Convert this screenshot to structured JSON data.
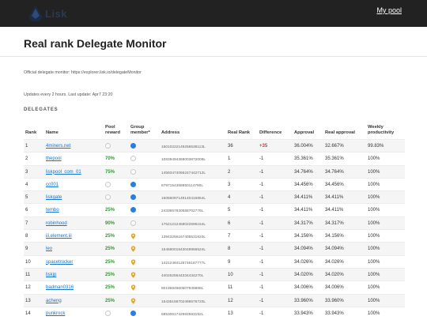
{
  "header": {
    "logo_text": "Lisk",
    "my_pool_label": "My pool"
  },
  "page": {
    "title": "Real rank Delegate Monitor",
    "official_note": "Official delegate monitor: https://explorer.lisk.io/delegateMonitor",
    "update_note": "Updates every 2 hours. Last update: Apr7 23:20",
    "section_title": "DELEGATES"
  },
  "columns": {
    "rank": "Rank",
    "name": "Name",
    "pool_reward": "Pool reward",
    "group_member": "Group member*",
    "address": "Address",
    "real_rank": "Real Rank",
    "difference": "Difference",
    "approval": "Approval",
    "real_approval": "Real approval",
    "weekly_productivity": "Weekly productivity"
  },
  "delegates": [
    {
      "rank": "1",
      "name": "4miners.net",
      "pool_reward": "",
      "reward_icon": "circle-empty",
      "group_icon": "circle-filled",
      "address": "16010222149256538113L",
      "real_rank": "36",
      "difference": "+35",
      "diff_color": "red",
      "approval": "36.004%",
      "real_approval": "32.667%",
      "weekly": "99.83%"
    },
    {
      "rank": "2",
      "name": "thepool",
      "pool_reward": "70%",
      "reward_icon": "",
      "group_icon": "circle-empty",
      "address": "10839494368003872009L",
      "real_rank": "1",
      "difference": "-1",
      "diff_color": "normal",
      "approval": "35.361%",
      "real_approval": "35.361%",
      "weekly": "100%"
    },
    {
      "rank": "3",
      "name": "liskpool_com_01",
      "pool_reward": "75%",
      "reward_icon": "",
      "group_icon": "circle-empty",
      "address": "14593474056247442712L",
      "real_rank": "2",
      "difference": "-1",
      "diff_color": "normal",
      "approval": "34.764%",
      "real_approval": "34.764%",
      "weekly": "100%"
    },
    {
      "rank": "4",
      "name": "cc001",
      "pool_reward": "",
      "reward_icon": "circle-empty",
      "group_icon": "circle-filled",
      "address": "6797154358850114790L",
      "real_rank": "3",
      "difference": "-1",
      "diff_color": "normal",
      "approval": "34.456%",
      "real_approval": "34.456%",
      "weekly": "100%"
    },
    {
      "rank": "5",
      "name": "liskgate",
      "pool_reward": "",
      "reward_icon": "circle-empty",
      "group_icon": "circle-filled",
      "address": "16056097149140416854L",
      "real_rank": "4",
      "difference": "-1",
      "diff_color": "normal",
      "approval": "34.411%",
      "real_approval": "34.411%",
      "weekly": "100%"
    },
    {
      "rank": "6",
      "name": "tembo",
      "pool_reward": "25%",
      "reward_icon": "",
      "group_icon": "circle-filled",
      "address": "2433657930558702776L",
      "real_rank": "5",
      "difference": "-1",
      "diff_color": "normal",
      "approval": "34.411%",
      "real_approval": "34.411%",
      "weekly": "100%"
    },
    {
      "rank": "7",
      "name": "robinhood",
      "pool_reward": "90%",
      "reward_icon": "",
      "group_icon": "circle-empty",
      "address": "17621212458022596154L",
      "real_rank": "6",
      "difference": "-1",
      "diff_color": "normal",
      "approval": "34.317%",
      "real_approval": "34.317%",
      "weekly": "100%"
    },
    {
      "rank": "8",
      "name": "iii.element.iii",
      "pool_reward": "25%",
      "reward_icon": "",
      "group_icon": "pin",
      "address": "13943256167405531820L",
      "real_rank": "7",
      "difference": "-1",
      "diff_color": "normal",
      "approval": "34.156%",
      "real_approval": "34.156%",
      "weekly": "100%"
    },
    {
      "rank": "9",
      "name": "leo",
      "pool_reward": "25%",
      "reward_icon": "",
      "group_icon": "pin",
      "address": "15458001843048966524L",
      "real_rank": "8",
      "difference": "-1",
      "diff_color": "normal",
      "approval": "34.094%",
      "real_approval": "34.094%",
      "weekly": "100%"
    },
    {
      "rank": "10",
      "name": "spacetrucker",
      "pool_reward": "25%",
      "reward_icon": "",
      "group_icon": "pin",
      "address": "14212484126746187777L",
      "real_rank": "9",
      "difference": "-1",
      "diff_color": "normal",
      "approval": "34.026%",
      "real_approval": "34.026%",
      "weekly": "100%"
    },
    {
      "rank": "11",
      "name": "liskjp",
      "pool_reward": "25%",
      "reward_icon": "",
      "group_icon": "pin",
      "address": "4402625644334434270L",
      "real_rank": "10",
      "difference": "-1",
      "diff_color": "normal",
      "approval": "34.020%",
      "real_approval": "34.020%",
      "weekly": "100%"
    },
    {
      "rank": "12",
      "name": "badman0316",
      "pool_reward": "25%",
      "reward_icon": "",
      "group_icon": "pin",
      "address": "8019594960607939888L",
      "real_rank": "11",
      "difference": "-1",
      "diff_color": "normal",
      "approval": "34.006%",
      "real_approval": "34.006%",
      "weekly": "100%"
    },
    {
      "rank": "13",
      "name": "acheng",
      "pool_reward": "25%",
      "reward_icon": "",
      "group_icon": "pin",
      "address": "15435156702499576720L",
      "real_rank": "12",
      "difference": "-1",
      "diff_color": "normal",
      "approval": "33.960%",
      "real_approval": "33.960%",
      "weekly": "100%"
    },
    {
      "rank": "14",
      "name": "punkrock",
      "pool_reward": "",
      "reward_icon": "circle-empty",
      "group_icon": "circle-filled",
      "address": "6853061742992593192L",
      "real_rank": "13",
      "difference": "-1",
      "diff_color": "normal",
      "approval": "33.943%",
      "real_approval": "33.943%",
      "weekly": "100%"
    }
  ],
  "colors": {
    "navbar": "#222222",
    "link": "#1a73c9",
    "pool_reward": "#2f9a2f",
    "difference_positive": "#d9363e",
    "group_dot": "#2a7de1",
    "group_pin": "#e0a52a"
  },
  "icons": {
    "logo": "lisk-logo-icon",
    "circle_filled": "blue-dot-icon",
    "circle_empty": "empty-circle-icon",
    "pin": "map-pin-icon"
  }
}
